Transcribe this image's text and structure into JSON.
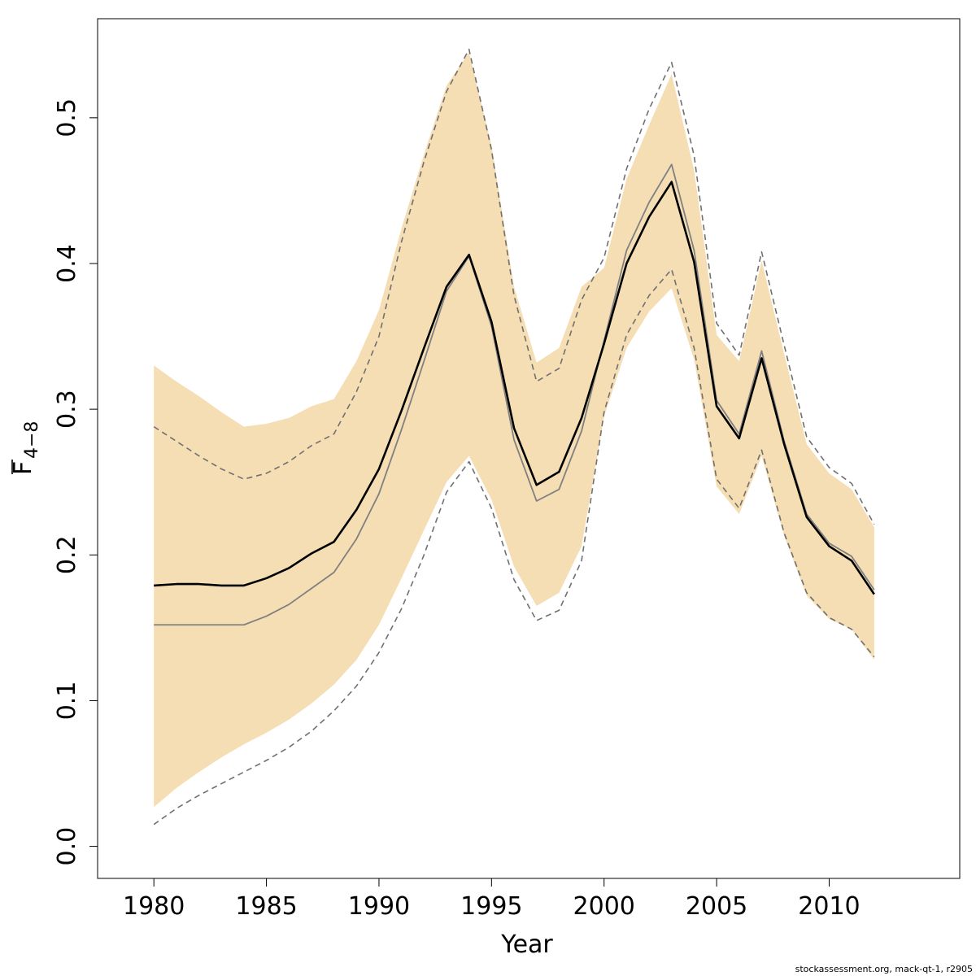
{
  "chart_data": {
    "type": "line",
    "xlabel": "Year",
    "ylabel": "F",
    "ylabel_subscript": "4−8",
    "credit": "stockassessment.org, mack-qt-1, r2905",
    "xlim": [
      1977.5,
      2015.8
    ],
    "ylim": [
      -0.022,
      0.568
    ],
    "xticks": [
      1980,
      1985,
      1990,
      1995,
      2000,
      2005,
      2010
    ],
    "yticks": [
      0.0,
      0.1,
      0.2,
      0.3,
      0.4,
      0.5
    ],
    "ytick_labels": [
      "0.0",
      "0.1",
      "0.2",
      "0.3",
      "0.4",
      "0.5"
    ],
    "grid": false,
    "colors": {
      "band": "#F5DEB3",
      "estimate": "#000000",
      "comparison": "#808080",
      "comparison_ci": "#707070",
      "frame": "#000000"
    },
    "x": [
      1980,
      1981,
      1982,
      1983,
      1984,
      1985,
      1986,
      1987,
      1988,
      1989,
      1990,
      1991,
      1992,
      1993,
      1994,
      1995,
      1996,
      1997,
      1998,
      1999,
      2000,
      2001,
      2002,
      2003,
      2004,
      2005,
      2006,
      2007,
      2008,
      2009,
      2010,
      2011,
      2012
    ],
    "series": [
      {
        "role": "ci_band",
        "lower": [
          0.027,
          0.04,
          0.051,
          0.061,
          0.07,
          0.078,
          0.087,
          0.098,
          0.111,
          0.128,
          0.152,
          0.184,
          0.217,
          0.25,
          0.268,
          0.238,
          0.192,
          0.165,
          0.174,
          0.206,
          0.295,
          0.342,
          0.367,
          0.383,
          0.334,
          0.247,
          0.228,
          0.268,
          0.213,
          0.172,
          0.156,
          0.149,
          0.128
        ],
        "upper": [
          0.33,
          0.319,
          0.309,
          0.298,
          0.288,
          0.29,
          0.294,
          0.302,
          0.307,
          0.333,
          0.368,
          0.424,
          0.475,
          0.522,
          0.545,
          0.481,
          0.384,
          0.332,
          0.342,
          0.384,
          0.397,
          0.458,
          0.495,
          0.53,
          0.464,
          0.351,
          0.333,
          0.402,
          0.338,
          0.276,
          0.256,
          0.245,
          0.219
        ]
      },
      {
        "role": "estimate",
        "values": [
          0.179,
          0.18,
          0.18,
          0.179,
          0.179,
          0.184,
          0.191,
          0.201,
          0.209,
          0.231,
          0.259,
          0.299,
          0.342,
          0.384,
          0.406,
          0.36,
          0.287,
          0.248,
          0.257,
          0.294,
          0.345,
          0.4,
          0.432,
          0.456,
          0.401,
          0.302,
          0.28,
          0.335,
          0.276,
          0.226,
          0.206,
          0.196,
          0.173
        ]
      },
      {
        "role": "comparison",
        "values": [
          0.152,
          0.152,
          0.152,
          0.152,
          0.152,
          0.158,
          0.166,
          0.177,
          0.188,
          0.211,
          0.242,
          0.286,
          0.333,
          0.381,
          0.405,
          0.357,
          0.279,
          0.237,
          0.245,
          0.285,
          0.347,
          0.409,
          0.442,
          0.468,
          0.409,
          0.306,
          0.283,
          0.34,
          0.278,
          0.228,
          0.208,
          0.199,
          0.176
        ]
      },
      {
        "role": "comparison_ci_lower",
        "values": [
          0.015,
          0.026,
          0.035,
          0.043,
          0.051,
          0.059,
          0.068,
          0.079,
          0.093,
          0.11,
          0.133,
          0.163,
          0.2,
          0.243,
          0.264,
          0.232,
          0.183,
          0.155,
          0.162,
          0.196,
          0.298,
          0.351,
          0.378,
          0.396,
          0.342,
          0.252,
          0.232,
          0.272,
          0.215,
          0.174,
          0.157,
          0.149,
          0.13
        ]
      },
      {
        "role": "comparison_ci_upper",
        "values": [
          0.288,
          0.278,
          0.268,
          0.259,
          0.252,
          0.256,
          0.264,
          0.275,
          0.283,
          0.312,
          0.35,
          0.415,
          0.47,
          0.518,
          0.547,
          0.478,
          0.378,
          0.319,
          0.328,
          0.375,
          0.404,
          0.465,
          0.506,
          0.538,
          0.474,
          0.359,
          0.337,
          0.408,
          0.344,
          0.281,
          0.26,
          0.249,
          0.221
        ]
      }
    ]
  }
}
